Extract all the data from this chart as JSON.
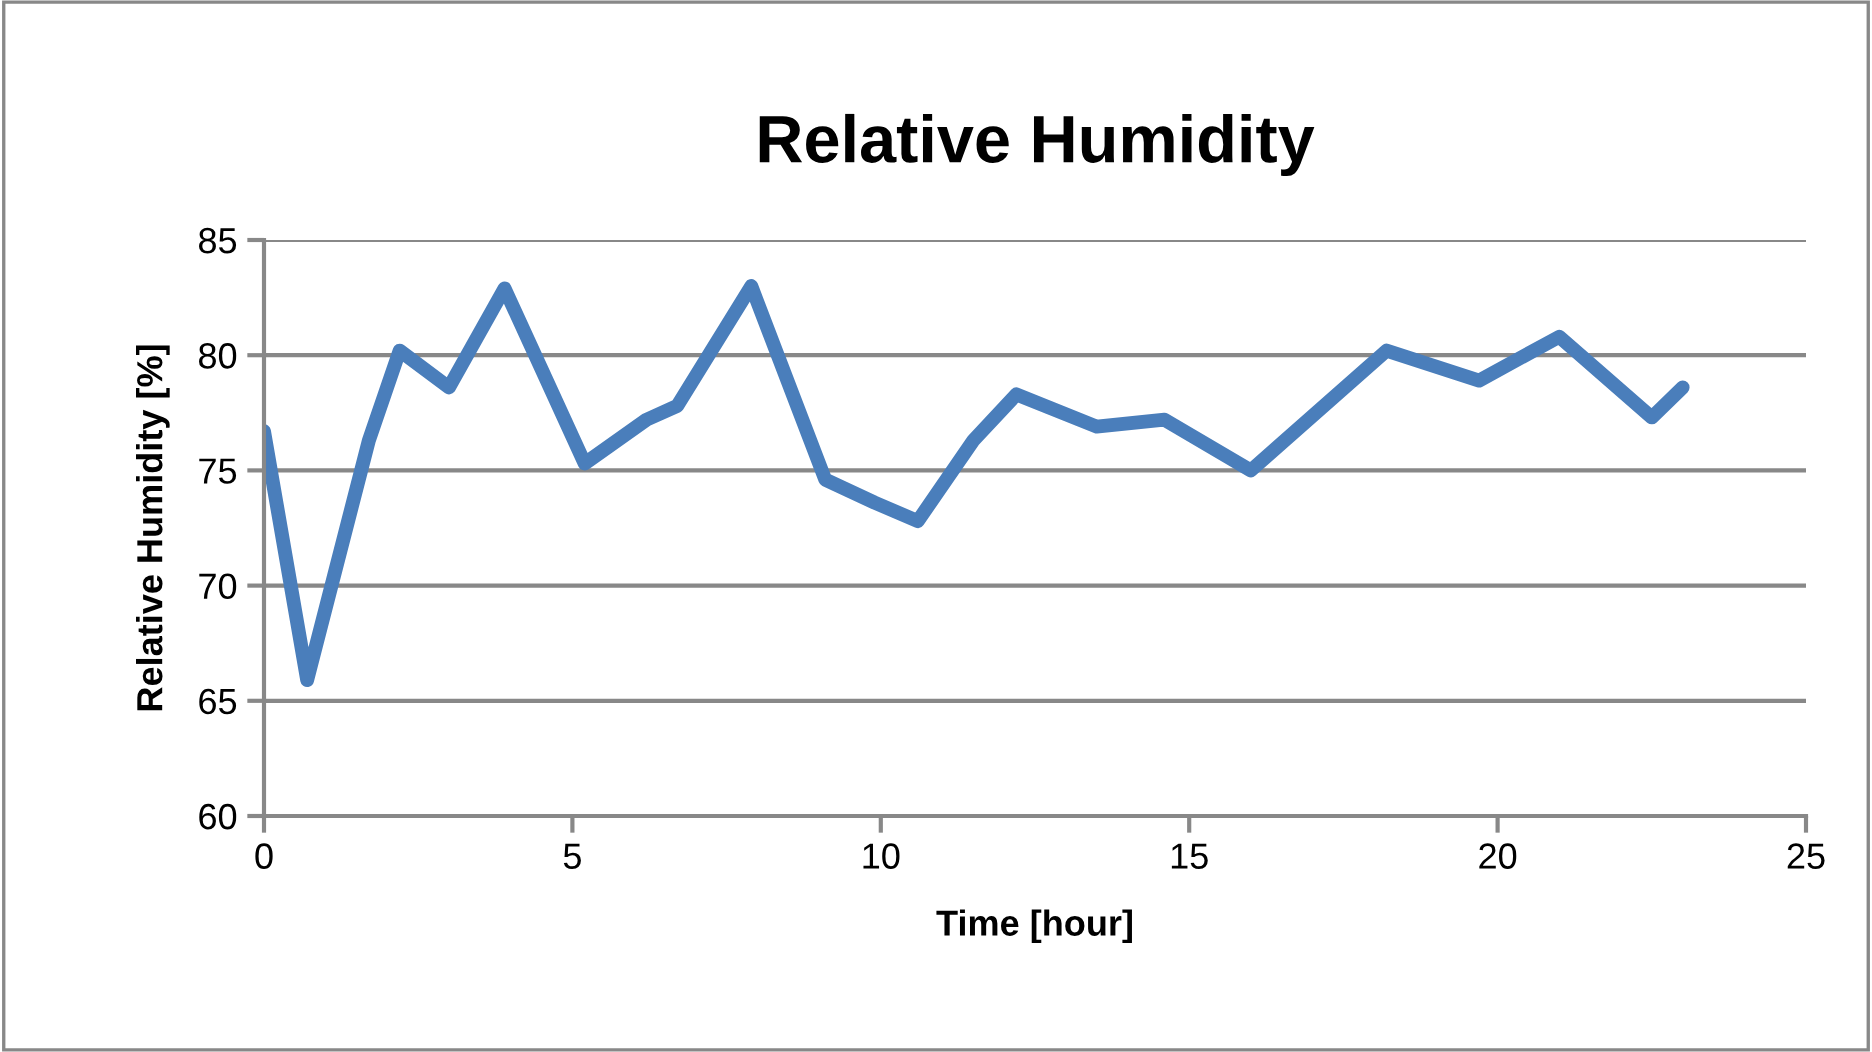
{
  "chart_data": {
    "type": "line",
    "title": "Relative Humidity",
    "xlabel": "Time [hour]",
    "ylabel": "Relative Humidity [%]",
    "x": [
      0,
      0.7,
      1.7,
      2.2,
      3.0,
      3.9,
      5.2,
      6.2,
      6.7,
      7.9,
      9.1,
      9.9,
      10.6,
      11.5,
      12.2,
      13.5,
      14.6,
      16.0,
      18.2,
      19.7,
      21.0,
      22.5,
      23.0
    ],
    "series": [
      {
        "color": "#4a7ebb",
        "values": [
          76.7,
          65.9,
          76.3,
          80.2,
          78.6,
          82.9,
          75.3,
          77.2,
          77.8,
          83.0,
          74.6,
          73.6,
          72.8,
          76.3,
          78.3,
          76.9,
          77.2,
          75.0,
          80.2,
          78.9,
          80.8,
          77.3,
          78.6
        ]
      }
    ],
    "xlim": [
      0,
      25
    ],
    "xticks": [
      0,
      5,
      10,
      15,
      20,
      25
    ],
    "ylim": [
      60,
      85
    ],
    "yticks": [
      60,
      65,
      70,
      75,
      80,
      85
    ],
    "grid": "y",
    "legend": false,
    "marker": "none",
    "line_style": "solid"
  }
}
